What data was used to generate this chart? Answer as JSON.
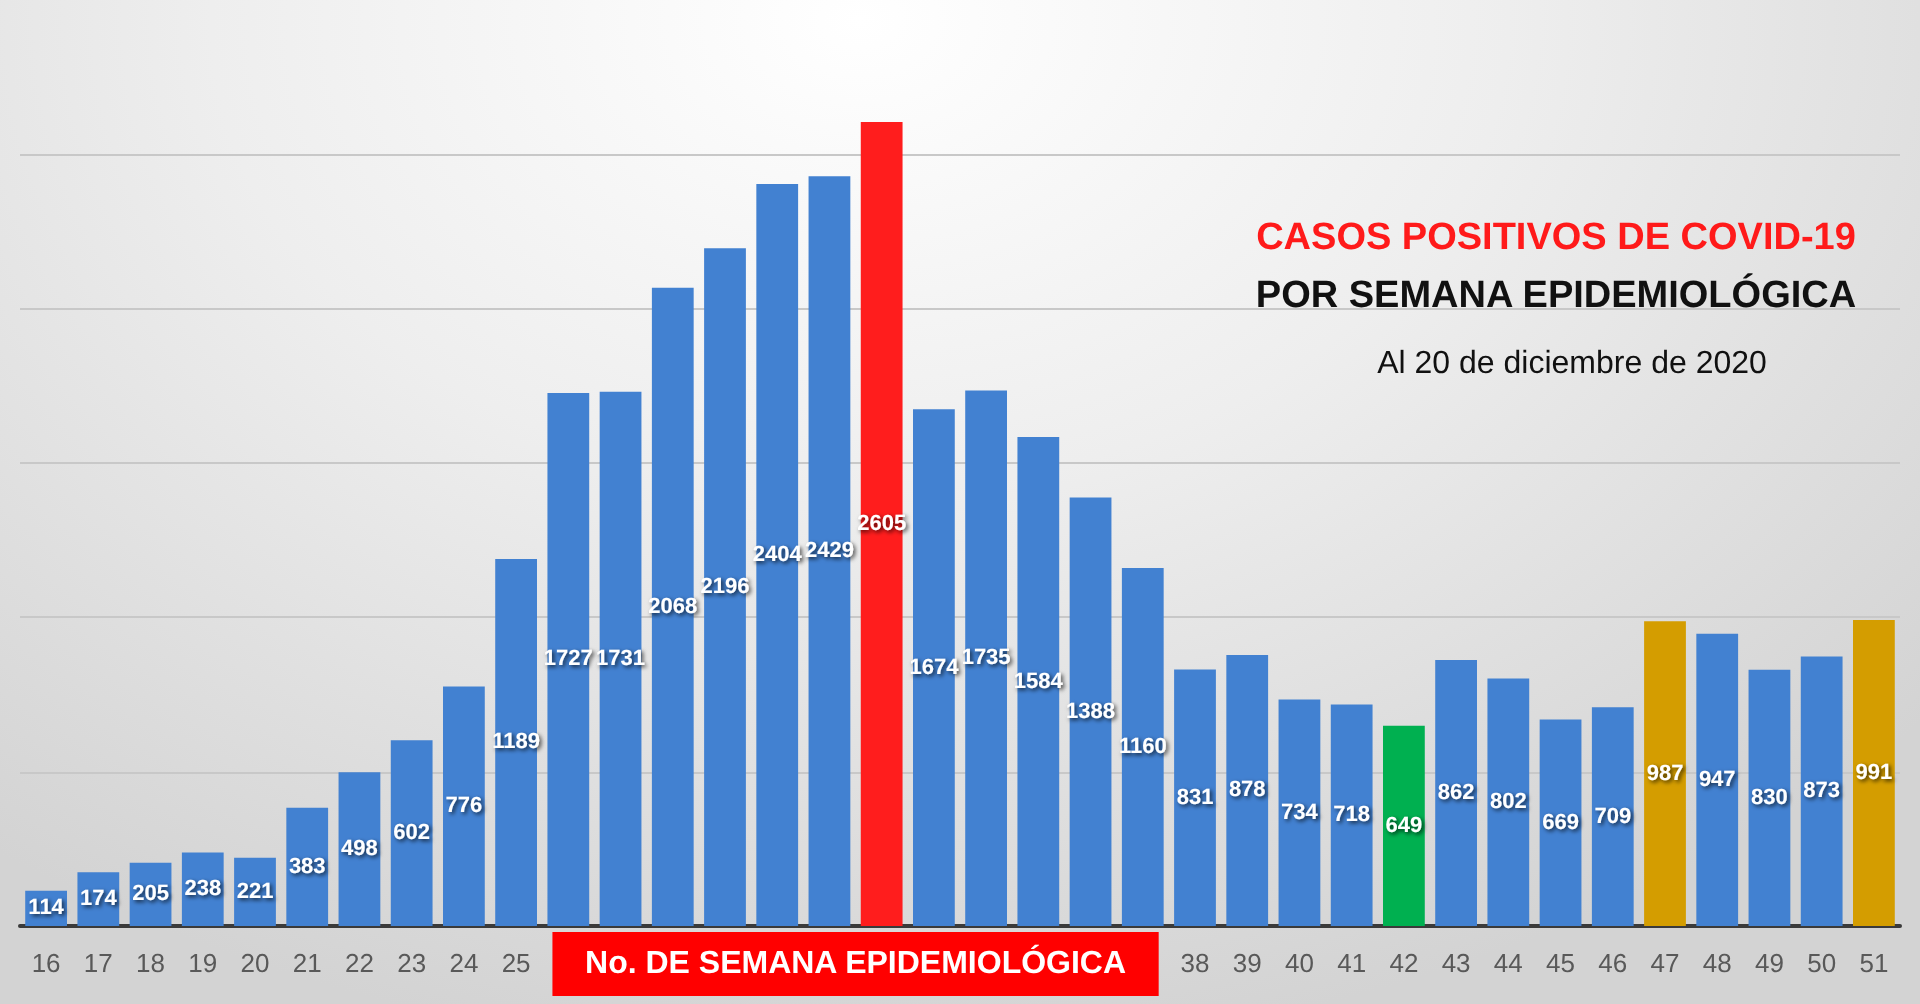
{
  "chart_data": {
    "type": "bar",
    "title": "CASOS POSITIVOS DE COVID-19",
    "subtitle": "POR SEMANA EPIDEMIOLÓGICA",
    "annotations": [
      "Al 20 de diciembre de 2020"
    ],
    "xlabel": "No. DE SEMANA EPIDEMIOLÓGICA",
    "categories": [
      "16",
      "17",
      "18",
      "19",
      "20",
      "21",
      "22",
      "23",
      "24",
      "25",
      null,
      null,
      null,
      null,
      null,
      null,
      null,
      null,
      null,
      null,
      null,
      null,
      "38",
      "39",
      "40",
      "41",
      "42",
      "43",
      "44",
      "45",
      "46",
      "47",
      "48",
      "49",
      "50",
      "51"
    ],
    "values": [
      114,
      174,
      205,
      238,
      221,
      383,
      498,
      602,
      776,
      1189,
      1727,
      1731,
      2068,
      2196,
      2404,
      2429,
      2605,
      1674,
      1735,
      1584,
      1388,
      1160,
      831,
      878,
      734,
      718,
      649,
      862,
      802,
      669,
      709,
      987,
      947,
      830,
      873,
      991
    ],
    "colors": [
      "#4281d1",
      "#4281d1",
      "#4281d1",
      "#4281d1",
      "#4281d1",
      "#4281d1",
      "#4281d1",
      "#4281d1",
      "#4281d1",
      "#4281d1",
      "#4281d1",
      "#4281d1",
      "#4281d1",
      "#4281d1",
      "#4281d1",
      "#4281d1",
      "#ff1d1d",
      "#4281d1",
      "#4281d1",
      "#4281d1",
      "#4281d1",
      "#4281d1",
      "#4281d1",
      "#4281d1",
      "#4281d1",
      "#4281d1",
      "#00b050",
      "#4281d1",
      "#4281d1",
      "#4281d1",
      "#4281d1",
      "#d49d00",
      "#4281d1",
      "#4281d1",
      "#4281d1",
      "#d49d00"
    ],
    "yticks": [
      {
        "value": 0,
        "label": null
      },
      {
        "value": 500,
        "label": null
      },
      {
        "value": 1000,
        "label": null
      },
      {
        "value": 1500,
        "label": null
      },
      {
        "value": 2000,
        "label": null
      },
      {
        "value": 2500,
        "label": null
      }
    ],
    "grid": "y",
    "data_labels": true,
    "tick_labels": "x"
  }
}
